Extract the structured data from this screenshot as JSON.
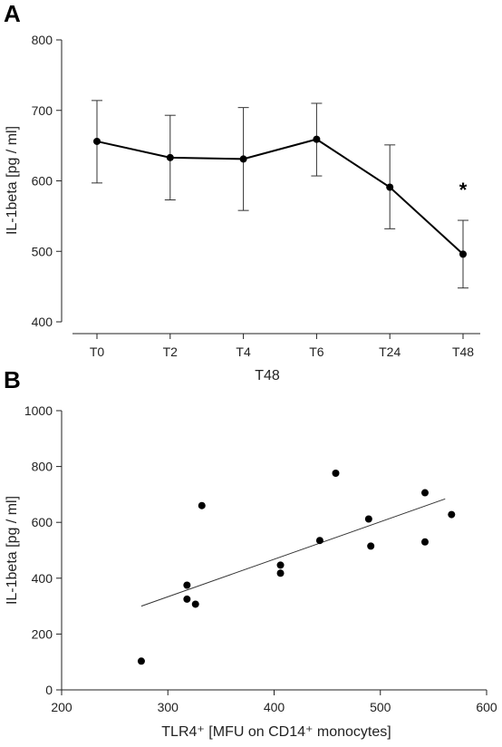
{
  "chart_data": [
    {
      "panel": "A",
      "type": "line",
      "title": "",
      "xlabel": "",
      "ylabel": "IL-1beta [pg / ml]",
      "categories": [
        "T0",
        "T2",
        "T4",
        "T6",
        "T24",
        "T48"
      ],
      "values": [
        656,
        633,
        631,
        659,
        591,
        496
      ],
      "error_upper": [
        714,
        693,
        704,
        710,
        651,
        544
      ],
      "error_lower": [
        597,
        573,
        558,
        607,
        532,
        448
      ],
      "ylim": [
        400,
        800
      ],
      "yticks": [
        400,
        500,
        600,
        700,
        800
      ],
      "annotations": [
        {
          "category": "T48",
          "text": "*"
        }
      ],
      "grid": false
    },
    {
      "panel": "B",
      "type": "scatter",
      "title": "T48",
      "xlabel": "TLR4⁺ [MFU on CD14⁺ monocytes]",
      "ylabel": "IL-1beta [pg / ml]",
      "xlim": [
        200,
        600
      ],
      "ylim": [
        0,
        1000
      ],
      "xticks": [
        200,
        300,
        400,
        500,
        600
      ],
      "yticks": [
        0,
        200,
        400,
        600,
        800,
        1000
      ],
      "points": [
        {
          "x": 275,
          "y": 103
        },
        {
          "x": 318,
          "y": 375
        },
        {
          "x": 318,
          "y": 325
        },
        {
          "x": 326,
          "y": 307
        },
        {
          "x": 332,
          "y": 660
        },
        {
          "x": 406,
          "y": 447
        },
        {
          "x": 406,
          "y": 418
        },
        {
          "x": 443,
          "y": 535
        },
        {
          "x": 458,
          "y": 776
        },
        {
          "x": 489,
          "y": 612
        },
        {
          "x": 491,
          "y": 515
        },
        {
          "x": 542,
          "y": 706
        },
        {
          "x": 542,
          "y": 530
        },
        {
          "x": 567,
          "y": 628
        }
      ],
      "fit": {
        "x": [
          275,
          561
        ],
        "y": [
          300,
          684
        ]
      },
      "grid": false
    }
  ]
}
